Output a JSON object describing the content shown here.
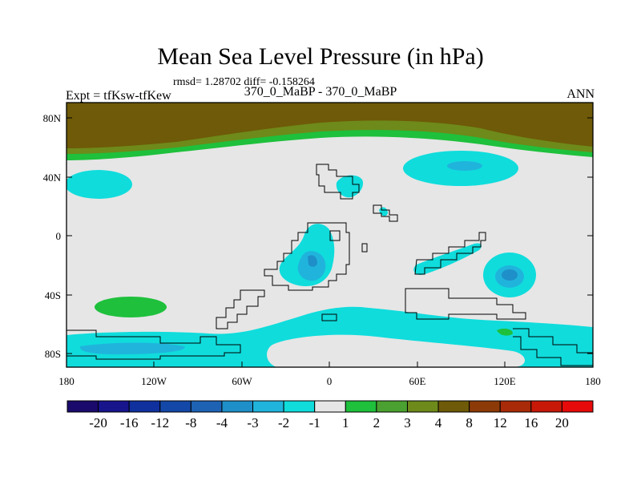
{
  "title": "Mean Sea Level Pressure (in hPa)",
  "stats": "rmsd= 1.28702 diff= -0.158264",
  "experiment": "Expt = tfKsw-tfKew",
  "comparison": "370_0_MaBP - 370_0_MaBP",
  "period": "ANN",
  "lat_labels": [
    "80N",
    "40N",
    "0",
    "40S",
    "80S"
  ],
  "lon_labels": [
    "180",
    "120W",
    "60W",
    "0",
    "60E",
    "120E",
    "180"
  ],
  "colorbar": {
    "labels": [
      "-20",
      "-16",
      "-12",
      "-8",
      "-4",
      "-3",
      "-2",
      "-1",
      "1",
      "2",
      "3",
      "4",
      "8",
      "12",
      "16",
      "20"
    ],
    "colors": [
      "#1a0a6b",
      "#17148c",
      "#10309e",
      "#1448a8",
      "#1e62b4",
      "#1e8fc8",
      "#20b4dc",
      "#10dcdc",
      "#e6e6e6",
      "#1ec03c",
      "#4aa030",
      "#6e8a1a",
      "#6e5a08",
      "#8c3a08",
      "#a82a08",
      "#c81808",
      "#e60a0a"
    ]
  },
  "colors": {
    "background_field": "#e6e6e6",
    "high_lat_dark": "#6e5a08",
    "high_lat_mid": "#6e8a1a",
    "high_lat_light": "#1ec03c",
    "cyan": "#10dcdc",
    "blue_mid": "#20b4dc",
    "blue_dark": "#1e8fc8"
  }
}
